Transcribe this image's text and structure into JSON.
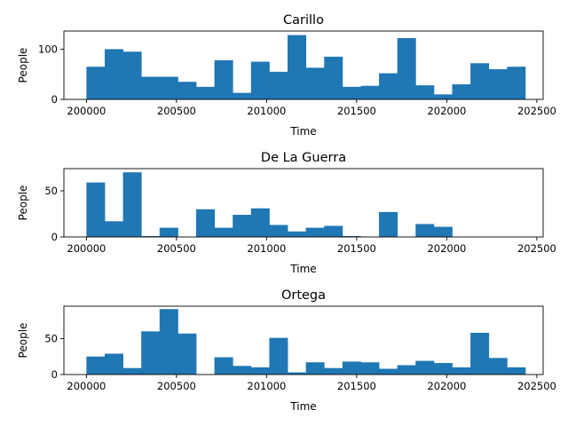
{
  "chart_data": [
    {
      "type": "bar",
      "title": "Carillo",
      "xlabel": "Time",
      "ylabel": "People",
      "xlim": [
        199875,
        202535
      ],
      "ylim": [
        0,
        136
      ],
      "x_ticks": [
        200000,
        200500,
        201000,
        201500,
        202000,
        202500
      ],
      "y_ticks": [
        0,
        100
      ],
      "bin_start": 200000,
      "bin_width": 101.5,
      "values": [
        65,
        100,
        95,
        45,
        45,
        35,
        25,
        78,
        13,
        75,
        55,
        128,
        63,
        85,
        25,
        27,
        52,
        122,
        28,
        10,
        30,
        72,
        60,
        65
      ]
    },
    {
      "type": "bar",
      "title": "De La Guerra",
      "xlabel": "Time",
      "ylabel": "People",
      "xlim": [
        199875,
        202535
      ],
      "ylim": [
        0,
        74
      ],
      "x_ticks": [
        200000,
        200500,
        201000,
        201500,
        202000,
        202500
      ],
      "y_ticks": [
        0,
        50
      ],
      "bin_start": 200000,
      "bin_width": 101.5,
      "values": [
        59,
        17,
        70,
        1,
        10,
        0,
        30,
        10,
        24,
        31,
        13,
        6,
        10,
        12,
        1,
        0,
        27,
        0,
        14,
        11,
        0,
        0,
        0,
        0
      ]
    },
    {
      "type": "bar",
      "title": "Ortega",
      "xlabel": "Time",
      "ylabel": "People",
      "xlim": [
        199875,
        202535
      ],
      "ylim": [
        0,
        95
      ],
      "x_ticks": [
        200000,
        200500,
        201000,
        201500,
        202000,
        202500
      ],
      "y_ticks": [
        0,
        50
      ],
      "bin_start": 200000,
      "bin_width": 101.5,
      "values": [
        25,
        29,
        9,
        60,
        91,
        57,
        0,
        24,
        12,
        10,
        51,
        3,
        17,
        9,
        18,
        17,
        8,
        13,
        19,
        16,
        10,
        58,
        23,
        10
      ]
    }
  ],
  "colors": {
    "bar": "#1f77b4"
  }
}
